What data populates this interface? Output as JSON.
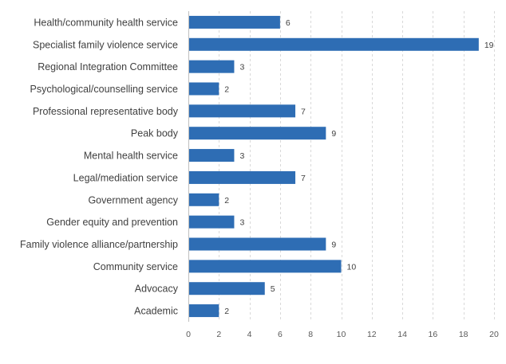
{
  "chart_data": {
    "type": "bar",
    "orientation": "horizontal",
    "categories": [
      "Health/community health service",
      "Specialist family violence service",
      "Regional Integration Committee",
      "Psychological/counselling service",
      "Professional representative body",
      "Peak body",
      "Mental health service",
      "Legal/mediation service",
      "Government agency",
      "Gender equity and prevention",
      "Family violence alliance/partnership",
      "Community service",
      "Advocacy",
      "Academic"
    ],
    "values": [
      6,
      19,
      3,
      2,
      7,
      9,
      3,
      7,
      2,
      3,
      9,
      10,
      5,
      2
    ],
    "xlim": [
      0,
      20
    ],
    "xticks": [
      0,
      2,
      4,
      6,
      8,
      10,
      12,
      14,
      16,
      18,
      20
    ],
    "title": "",
    "xlabel": "",
    "ylabel": "",
    "grid": "vertical-dashed",
    "legend": "none",
    "data_labels": true,
    "colors": {
      "bar": "#2e6db4",
      "grid": "#d9d9d9",
      "axis": "#bfbfbf"
    }
  }
}
